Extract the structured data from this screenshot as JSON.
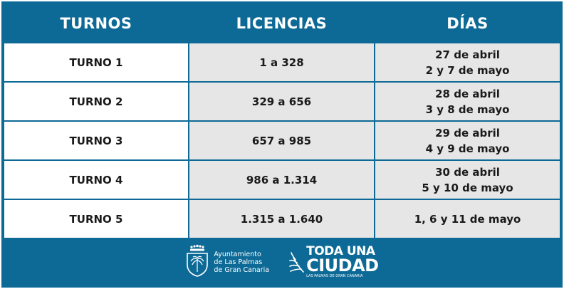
{
  "table": {
    "headers": [
      "TURNOS",
      "LICENCIAS",
      "DÍAS"
    ],
    "rows": [
      {
        "turno": "TURNO 1",
        "licencias": "1 a 328",
        "dias": [
          "27 de abril",
          "2 y 7 de mayo"
        ]
      },
      {
        "turno": "TURNO 2",
        "licencias": "329 a 656",
        "dias": [
          "28 de abril",
          "3 y 8 de mayo"
        ]
      },
      {
        "turno": "TURNO 3",
        "licencias": "657 a 985",
        "dias": [
          "29 de abril",
          "4 y 9 de mayo"
        ]
      },
      {
        "turno": "TURNO 4",
        "licencias": "986 a 1.314",
        "dias": [
          "30 de abril",
          "5 y 10 de mayo"
        ]
      },
      {
        "turno": "TURNO 5",
        "licencias": "1.315 a 1.640",
        "dias": [
          "1, 6 y 11 de mayo"
        ]
      }
    ]
  },
  "footer": {
    "ayuntamiento_logo": {
      "icon": "coat-of-arms-icon",
      "lines": [
        "Ayuntamiento",
        "de Las Palmas",
        "de Gran Canaria"
      ]
    },
    "campaign_logo": {
      "icon": "palm-leaf-icon",
      "line1": "TODA UNA",
      "line2": "CIUDAD",
      "line3": "LAS PALMAS DE GRAN CANARIA"
    }
  },
  "colors": {
    "brand_blue": "#0d6a96",
    "cell_white": "#ffffff",
    "cell_grey": "#e6e6e6",
    "text_dark": "#1a1a1a"
  }
}
